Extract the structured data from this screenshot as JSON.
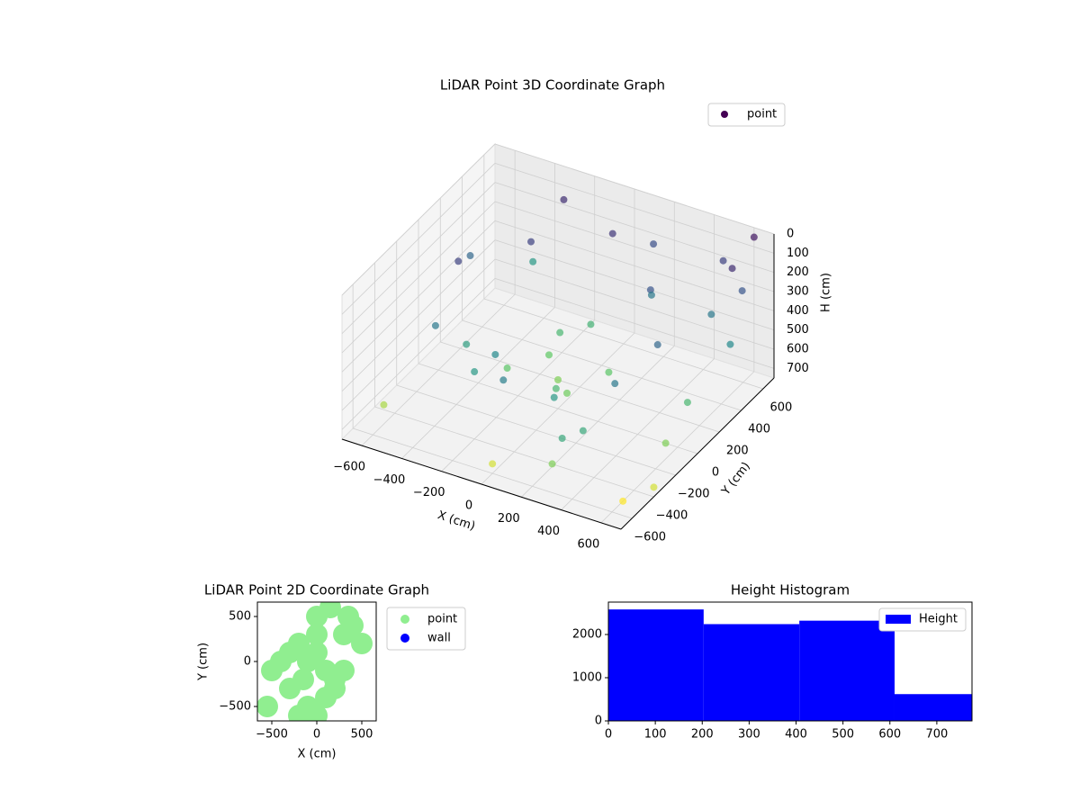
{
  "chart_data": [
    {
      "type": "scatter3d",
      "title": "LiDAR Point 3D Coordinate Graph",
      "xlabel": "X (cm)",
      "ylabel": "Y (cm)",
      "zlabel": "H (cm)",
      "colormap": "viridis",
      "z_inverted": true,
      "legend": "upper right",
      "series": [
        {
          "name": "point",
          "color": "#440154",
          "x": [
            -500,
            -300,
            0,
            300,
            500,
            -450,
            450,
            0,
            -200,
            200,
            -100,
            100,
            0,
            -600,
            600,
            -400,
            400,
            200,
            -200,
            0,
            600,
            650,
            700,
            650,
            600,
            -550,
            -350,
            150,
            350,
            -150,
            500,
            550,
            650,
            700,
            0,
            -300,
            300,
            100,
            -100,
            250
          ],
          "y": [
            0,
            300,
            500,
            300,
            0,
            -300,
            -300,
            -500,
            -400,
            -400,
            200,
            -200,
            0,
            -500,
            500,
            500,
            -500,
            100,
            -100,
            300,
            700,
            500,
            300,
            -200,
            -500,
            200,
            -200,
            600,
            -600,
            -300,
            600,
            400,
            0,
            -400,
            -600,
            600,
            -600,
            -100,
            100,
            400
          ],
          "z": [
            150,
            150,
            120,
            200,
            250,
            300,
            300,
            320,
            400,
            400,
            500,
            500,
            600,
            650,
            100,
            400,
            450,
            550,
            550,
            480,
            50,
            200,
            350,
            600,
            750,
            250,
            420,
            180,
            450,
            350,
            150,
            300,
            500,
            700,
            700,
            100,
            600,
            580,
            560,
            300
          ]
        }
      ],
      "xlim": [
        -700,
        700
      ],
      "ylim": [
        -700,
        700
      ],
      "zlim": [
        0,
        750
      ],
      "xticks": [
        {
          "value": -600,
          "label": "−600"
        },
        {
          "value": -400,
          "label": "−400"
        },
        {
          "value": -200,
          "label": "−200"
        },
        0,
        200,
        400,
        600
      ],
      "yticks": [
        {
          "value": -600,
          "label": "−600"
        },
        {
          "value": -400,
          "label": "−400"
        },
        {
          "value": -200,
          "label": "−200"
        },
        0,
        200,
        400,
        600
      ],
      "zticks": [
        0,
        100,
        200,
        300,
        400,
        500,
        600,
        700
      ],
      "grid": true
    },
    {
      "type": "scatter",
      "title": "LiDAR Point 2D Coordinate Graph",
      "xlabel": "X (cm)",
      "ylabel": "Y (cm)",
      "legend": "outside right",
      "series": [
        {
          "name": "point",
          "color": "#90ee90",
          "x": [
            -100,
            0,
            100,
            -200,
            200,
            0,
            -300,
            300,
            -500,
            -400,
            400,
            500,
            -100,
            100,
            0,
            -200,
            200,
            300,
            -300,
            0,
            150,
            -150,
            350,
            -550
          ],
          "y": [
            0,
            100,
            -100,
            200,
            -200,
            500,
            -300,
            300,
            -100,
            0,
            400,
            200,
            -500,
            -400,
            -600,
            -600,
            -300,
            -100,
            100,
            300,
            600,
            -200,
            500,
            -500
          ]
        },
        {
          "name": "wall",
          "color": "#0000ff",
          "x": [],
          "y": []
        }
      ],
      "xlim": [
        -660,
        660
      ],
      "ylim": [
        -660,
        660
      ],
      "xticks": [
        {
          "value": -500,
          "label": "−500"
        },
        0,
        500
      ],
      "yticks": [
        {
          "value": -500,
          "label": "−500"
        },
        0,
        500
      ]
    },
    {
      "type": "histogram",
      "title": "Height Histogram",
      "legend": "upper right",
      "series": [
        {
          "name": "Height",
          "color": "#0000ff"
        }
      ],
      "bins": [
        0,
        203,
        407,
        610,
        775
      ],
      "values": [
        2580,
        2240,
        2320,
        620
      ],
      "xlim": [
        0,
        775
      ],
      "ylim": [
        0,
        2750
      ],
      "xticks": [
        0,
        100,
        200,
        300,
        400,
        500,
        600,
        700
      ],
      "yticks": [
        0,
        1000,
        2000
      ]
    }
  ]
}
